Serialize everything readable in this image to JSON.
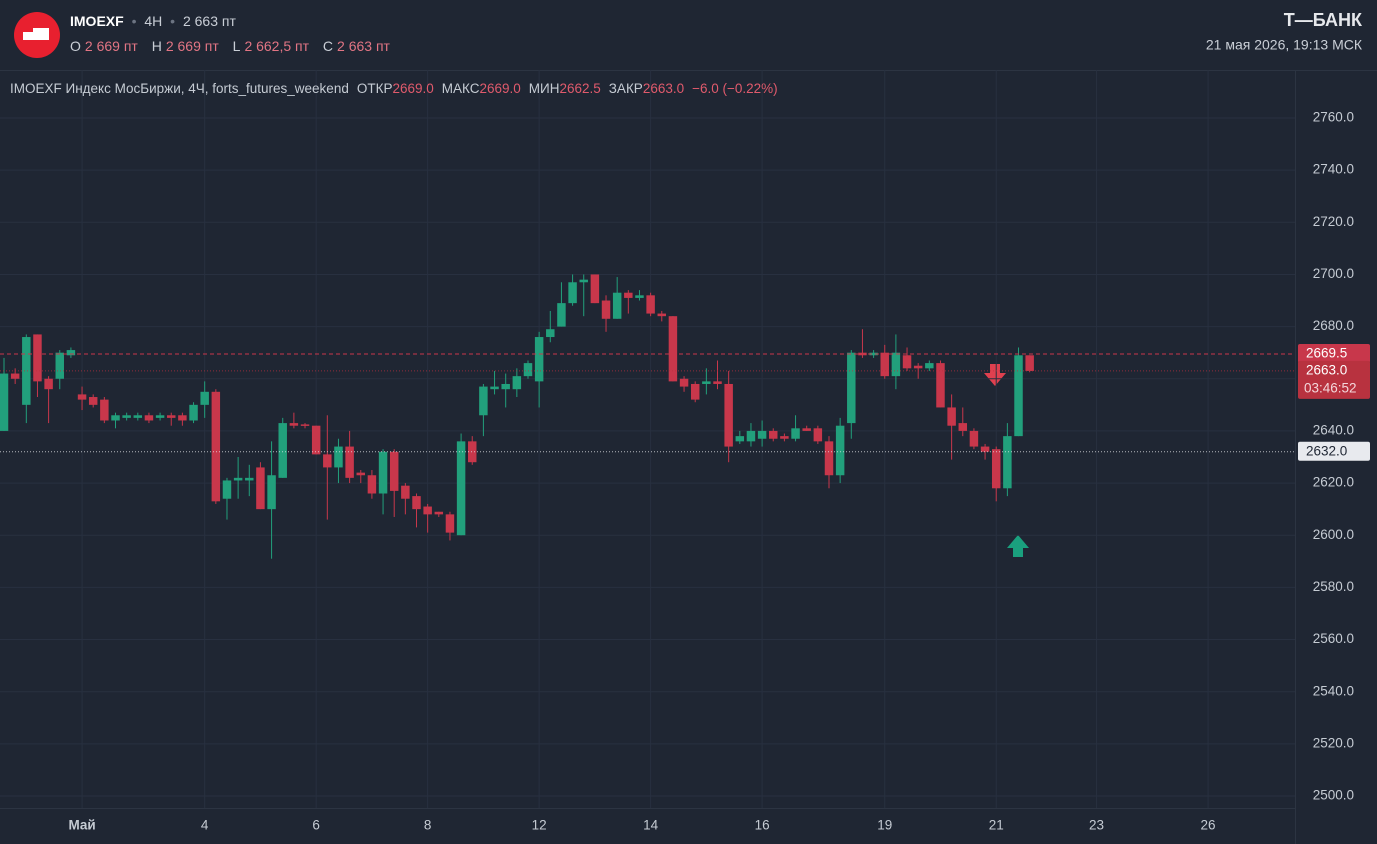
{
  "header": {
    "symbol": "IMOEXF",
    "interval": "4H",
    "price": "2 663 пт",
    "ohlc": [
      {
        "label": "O",
        "value": "2 669 пт"
      },
      {
        "label": "H",
        "value": "2 669 пт"
      },
      {
        "label": "L",
        "value": "2 662,5 пт"
      },
      {
        "label": "C",
        "value": "2 663 пт"
      }
    ],
    "brand": "Т—БАНК",
    "datetime": "21 мая 2026, 19:13 МСК"
  },
  "chart_data": {
    "type": "candlestick",
    "title": "IMOEXF Индекс МосБиржи, 4Ч, forts_futures_weekend",
    "legend": [
      {
        "label": "ОТКР",
        "value": "2669.0"
      },
      {
        "label": "МАКС",
        "value": "2669.0"
      },
      {
        "label": "МИН",
        "value": "2662.5"
      },
      {
        "label": "ЗАКР",
        "value": "2663.0"
      }
    ],
    "change": "−6.0 (−0.22%)",
    "up_color": "#22a07c",
    "down_color": "#c8374b",
    "grid": true,
    "x": [
      0,
      1,
      2,
      3,
      4,
      5,
      6,
      7,
      8,
      9,
      10,
      11,
      12,
      13,
      14,
      15,
      16,
      17,
      18,
      19,
      20,
      21,
      22,
      23,
      24,
      25,
      26,
      27,
      28,
      29,
      30,
      31,
      32,
      33,
      34,
      35,
      36,
      37,
      38,
      39,
      40,
      41,
      42,
      43,
      44,
      45,
      46,
      47,
      48,
      49,
      50,
      51,
      52,
      53,
      54,
      55,
      56,
      57,
      58,
      59,
      60,
      61,
      62,
      63,
      64,
      65,
      66,
      67,
      68,
      69,
      70,
      71,
      72,
      73,
      74,
      75,
      76,
      77,
      78,
      79,
      80,
      81,
      82,
      83,
      84,
      85,
      86,
      87,
      88,
      89,
      90,
      91,
      92
    ],
    "open": [
      2640,
      2662,
      2650,
      2677,
      2660,
      2660,
      2669,
      2654,
      2653,
      2652,
      2644,
      2645,
      2645,
      2646,
      2645,
      2646,
      2646,
      2644,
      2650,
      2655,
      2614,
      2621,
      2621,
      2626,
      2610,
      2622,
      2643,
      2642.5,
      2642,
      2631,
      2626,
      2634,
      2624,
      2623,
      2616,
      2632,
      2619,
      2615,
      2611,
      2609,
      2608,
      2600,
      2636,
      2646,
      2656,
      2656,
      2656,
      2661,
      2659,
      2676,
      2680,
      2689,
      2697,
      2700,
      2690,
      2683,
      2693,
      2691,
      2692,
      2685,
      2684,
      2660,
      2658,
      2658,
      2659,
      2658,
      2636,
      2636,
      2637,
      2640,
      2638,
      2637,
      2641,
      2641,
      2636,
      2623,
      2643,
      2670,
      2669,
      2670,
      2661,
      2669,
      2665,
      2664,
      2666,
      2649,
      2643,
      2640,
      2634,
      2633,
      2618,
      2638,
      2669
    ],
    "high": [
      2668,
      2664,
      2677,
      2677,
      2661,
      2671,
      2672,
      2657,
      2654,
      2653,
      2647,
      2647,
      2647,
      2647,
      2647,
      2647,
      2647,
      2651,
      2659,
      2656,
      2622,
      2630,
      2627,
      2628,
      2636,
      2645,
      2647,
      2643,
      2642,
      2646,
      2637,
      2640,
      2625,
      2625,
      2633,
      2633,
      2620,
      2616,
      2612,
      2609,
      2609,
      2639,
      2638,
      2658,
      2663,
      2662,
      2664,
      2667,
      2678,
      2686,
      2697,
      2700,
      2700,
      2700,
      2692,
      2699,
      2694,
      2694,
      2693,
      2686,
      2684,
      2661,
      2659,
      2664,
      2667,
      2663,
      2640,
      2643,
      2644,
      2641,
      2639,
      2646,
      2642,
      2642,
      2638,
      2645,
      2671,
      2679,
      2671,
      2673,
      2677,
      2672,
      2666,
      2667,
      2667,
      2654,
      2649,
      2641,
      2635,
      2634,
      2643,
      2672,
      2669
    ],
    "low": [
      2640,
      2658,
      2643,
      2653,
      2643,
      2656,
      2668,
      2648,
      2649,
      2643,
      2641,
      2644,
      2644,
      2643,
      2644,
      2642,
      2642,
      2643,
      2645,
      2612,
      2606,
      2614,
      2615,
      2610,
      2591,
      2622,
      2641,
      2641,
      2631,
      2606,
      2620,
      2620,
      2620,
      2614,
      2608,
      2607,
      2608,
      2603,
      2601,
      2607,
      2598,
      2600,
      2627,
      2638,
      2654,
      2649,
      2653,
      2660,
      2649,
      2674,
      2680,
      2688,
      2684,
      2689,
      2678,
      2683,
      2685,
      2690,
      2684,
      2682,
      2659,
      2655,
      2651,
      2654,
      2656,
      2628,
      2635,
      2634,
      2634,
      2636,
      2636,
      2636,
      2640,
      2635,
      2618,
      2620,
      2637,
      2668,
      2668,
      2660,
      2656,
      2663,
      2660,
      2663,
      2649,
      2629,
      2638,
      2633,
      2629,
      2613,
      2615,
      2638,
      2662.5
    ],
    "close": [
      2662,
      2660,
      2676,
      2659,
      2656,
      2670,
      2671,
      2652,
      2650,
      2644,
      2646,
      2646,
      2646,
      2644,
      2646,
      2645,
      2644,
      2650,
      2655,
      2613,
      2621,
      2622,
      2622,
      2610,
      2623,
      2643,
      2642,
      2642,
      2631,
      2626,
      2634,
      2622,
      2623,
      2616,
      2632,
      2617,
      2614,
      2610,
      2608,
      2608,
      2601,
      2636,
      2628,
      2657,
      2657,
      2658,
      2661,
      2666,
      2676,
      2679,
      2689,
      2697,
      2698,
      2689,
      2683,
      2693,
      2691,
      2692,
      2685,
      2684,
      2659,
      2657,
      2652,
      2659,
      2658,
      2634,
      2638,
      2640,
      2640,
      2637,
      2637,
      2641,
      2640,
      2636,
      2623,
      2642,
      2670,
      2669,
      2670,
      2661,
      2670,
      2664,
      2664,
      2666,
      2649,
      2642,
      2640,
      2634,
      2632,
      2618,
      2638,
      2669,
      2663
    ],
    "xlim": [
      -0.36,
      115.8
    ],
    "xticks": [
      {
        "value": 7,
        "label": "Май"
      },
      {
        "value": 18,
        "label": "4"
      },
      {
        "value": 28,
        "label": "6"
      },
      {
        "value": 38,
        "label": "8"
      },
      {
        "value": 48,
        "label": "12"
      },
      {
        "value": 58,
        "label": "14"
      },
      {
        "value": 68,
        "label": "16"
      },
      {
        "value": 79,
        "label": "19"
      },
      {
        "value": 89,
        "label": "21"
      },
      {
        "value": 98,
        "label": "23"
      },
      {
        "value": 108,
        "label": "26"
      }
    ],
    "ylim": [
      2495.4,
      2778.4
    ],
    "yticks": [
      {
        "value": 2500,
        "label": "2500.0"
      },
      {
        "value": 2520,
        "label": "2520.0"
      },
      {
        "value": 2540,
        "label": "2540.0"
      },
      {
        "value": 2560,
        "label": "2560.0"
      },
      {
        "value": 2580,
        "label": "2580.0"
      },
      {
        "value": 2600,
        "label": "2600.0"
      },
      {
        "value": 2620,
        "label": "2620.0"
      },
      {
        "value": 2640,
        "label": "2640.0"
      },
      {
        "value": 2660,
        "label": "2660.0"
      },
      {
        "value": 2680,
        "label": "2680.0"
      },
      {
        "value": 2700,
        "label": "2700.0"
      },
      {
        "value": 2720,
        "label": "2720.0"
      },
      {
        "value": 2740,
        "label": "2740.0"
      },
      {
        "value": 2760,
        "label": "2760.0"
      }
    ],
    "hlines": [
      {
        "value": 2669.5,
        "label": "2669.5",
        "color": "#c8374b",
        "style": "dashed"
      },
      {
        "value": 2663,
        "label": "2663.0",
        "countdown": "03:46:52",
        "color": "#b8323f",
        "style": "dotted"
      },
      {
        "value": 2632,
        "label": "2632.0",
        "color": "#e8eaee",
        "style": "dotted"
      }
    ]
  }
}
